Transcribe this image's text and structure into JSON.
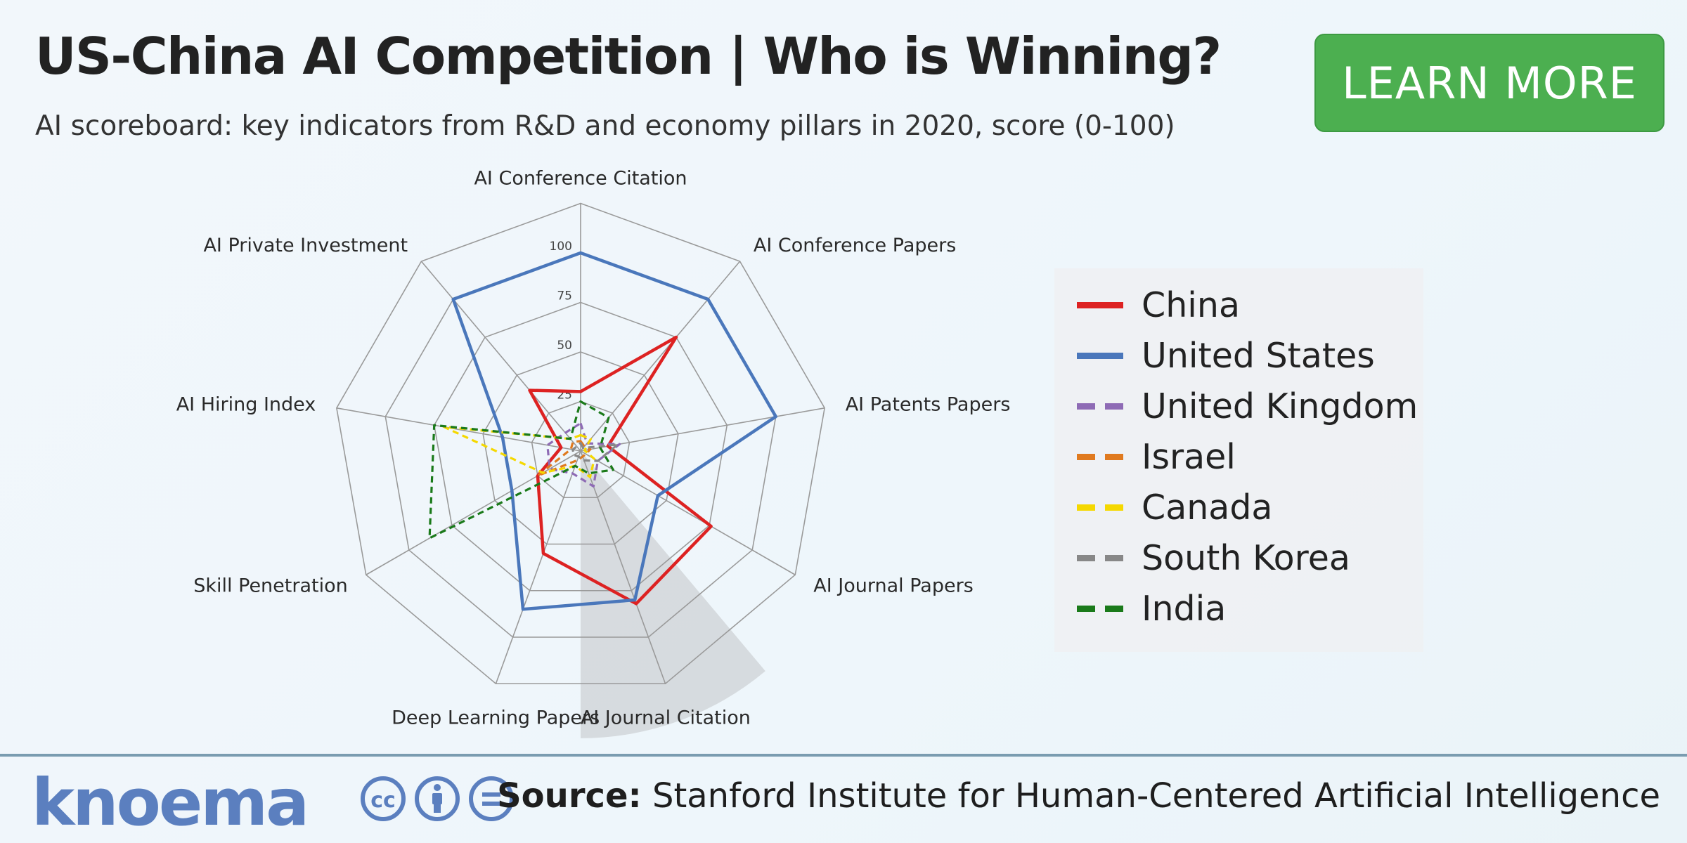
{
  "header": {
    "title": "US-China AI Competition | Who is Winning?",
    "subtitle": "AI scoreboard: key indicators from R&D and economy pillars in 2020, score (0-100)",
    "learn_more": "LEARN MORE"
  },
  "chart_data": {
    "type": "radar",
    "axes": [
      "AI Conference Citation",
      "AI Conference Papers",
      "AI Patents Papers",
      "AI Journal Papers",
      "AI Journal Citation",
      "Deep Learning Papers",
      "Skill Penetration",
      "AI Hiring Index",
      "AI Private Investment"
    ],
    "rlim": [
      0,
      100
    ],
    "radial_ticks": [
      25,
      50,
      75,
      100
    ],
    "series": [
      {
        "name": "China",
        "color": "#dd2222",
        "dash": "solid",
        "values": [
          30,
          75,
          14,
          76,
          82,
          55,
          25,
          10,
          40
        ]
      },
      {
        "name": "United States",
        "color": "#4a77bb",
        "dash": "solid",
        "values": [
          100,
          100,
          100,
          45,
          80,
          85,
          40,
          40,
          100
        ]
      },
      {
        "name": "United Kingdom",
        "color": "#8e6bb5",
        "dash": "dashed",
        "values": [
          14,
          5,
          20,
          10,
          19,
          12,
          18,
          17,
          12
        ]
      },
      {
        "name": "Israel",
        "color": "#e07a1f",
        "dash": "dashed",
        "values": [
          5,
          3,
          5,
          3,
          3,
          5,
          25,
          5,
          6
        ]
      },
      {
        "name": "Canada",
        "color": "#f5d800",
        "dash": "dashed",
        "values": [
          8,
          8,
          2,
          8,
          14,
          8,
          22,
          70,
          8
        ]
      },
      {
        "name": "South Korea",
        "color": "#888888",
        "dash": "dashed",
        "values": [
          4,
          2,
          19,
          10,
          5,
          3,
          4,
          4,
          3
        ]
      },
      {
        "name": "India",
        "color": "#1a7a1a",
        "dash": "dashed",
        "values": [
          25,
          22,
          10,
          19,
          12,
          8,
          88,
          75,
          8
        ]
      }
    ],
    "legend_position": "right",
    "grid": true,
    "highlight_sector": "AI Journal Citation"
  },
  "footer": {
    "logo": "knoema",
    "source_label": "Source:",
    "source_text": "Stanford Institute for Human-Centered Artificial Intelligence",
    "license_icons": [
      "cc",
      "by",
      "nd"
    ]
  }
}
